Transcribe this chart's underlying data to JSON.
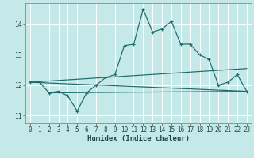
{
  "xlabel": "Humidex (Indice chaleur)",
  "background_color": "#c5e8e8",
  "grid_color": "#ffffff",
  "line_color": "#1a6b6b",
  "xlim": [
    -0.5,
    23.5
  ],
  "ylim": [
    10.75,
    14.7
  ],
  "yticks": [
    11,
    12,
    13,
    14
  ],
  "xticks": [
    0,
    1,
    2,
    3,
    4,
    5,
    6,
    7,
    8,
    9,
    10,
    11,
    12,
    13,
    14,
    15,
    16,
    17,
    18,
    19,
    20,
    21,
    22,
    23
  ],
  "curve_x": [
    0,
    1,
    2,
    3,
    4,
    5,
    6,
    7,
    8,
    9,
    10,
    11,
    12,
    13,
    14,
    15,
    16,
    17,
    18,
    19,
    20,
    21,
    22,
    23
  ],
  "curve_y": [
    12.1,
    12.1,
    11.75,
    11.8,
    11.65,
    11.15,
    11.75,
    12.0,
    12.25,
    12.35,
    13.3,
    13.35,
    14.5,
    13.75,
    13.85,
    14.1,
    13.35,
    13.35,
    13.0,
    12.85,
    12.0,
    12.1,
    12.35,
    11.8
  ],
  "line1_x": [
    0,
    23
  ],
  "line1_y": [
    12.1,
    12.55
  ],
  "line2_x": [
    0,
    23
  ],
  "line2_y": [
    12.1,
    11.8
  ],
  "line3_x": [
    2,
    23
  ],
  "line3_y": [
    11.75,
    11.8
  ],
  "xlabel_fontsize": 6.5,
  "tick_fontsize": 5.5
}
